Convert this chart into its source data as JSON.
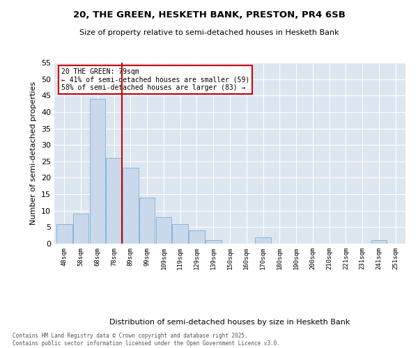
{
  "title_line1": "20, THE GREEN, HESKETH BANK, PRESTON, PR4 6SB",
  "title_line2": "Size of property relative to semi-detached houses in Hesketh Bank",
  "xlabel": "Distribution of semi-detached houses by size in Hesketh Bank",
  "ylabel": "Number of semi-detached properties",
  "categories": [
    "48sqm",
    "58sqm",
    "68sqm",
    "78sqm",
    "89sqm",
    "99sqm",
    "109sqm",
    "119sqm",
    "129sqm",
    "139sqm",
    "150sqm",
    "160sqm",
    "170sqm",
    "180sqm",
    "190sqm",
    "200sqm",
    "210sqm",
    "221sqm",
    "231sqm",
    "241sqm",
    "251sqm"
  ],
  "values": [
    6,
    9,
    44,
    26,
    23,
    14,
    8,
    6,
    4,
    1,
    0,
    0,
    2,
    0,
    0,
    0,
    0,
    0,
    0,
    1,
    0
  ],
  "bar_color": "#c9d9eb",
  "bar_edge_color": "#7aafd4",
  "background_color": "#dce6f0",
  "grid_color": "#ffffff",
  "vline_x": 3.5,
  "vline_color": "#cc0000",
  "annotation_text": "20 THE GREEN: 79sqm\n← 41% of semi-detached houses are smaller (59)\n58% of semi-detached houses are larger (83) →",
  "annotation_box_color": "#cc0000",
  "ylim": [
    0,
    55
  ],
  "yticks": [
    0,
    5,
    10,
    15,
    20,
    25,
    30,
    35,
    40,
    45,
    50,
    55
  ],
  "footer_line1": "Contains HM Land Registry data © Crown copyright and database right 2025.",
  "footer_line2": "Contains public sector information licensed under the Open Government Licence v3.0."
}
